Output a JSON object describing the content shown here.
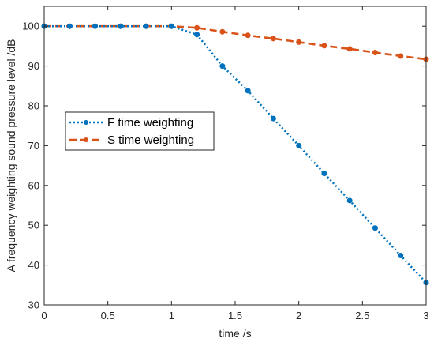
{
  "chart_data": {
    "type": "line",
    "xlabel": "time /s",
    "ylabel": "A frequency weighting sound pressure level /dB",
    "xlim": [
      0,
      3
    ],
    "ylim": [
      30,
      105
    ],
    "xticks": [
      0,
      0.5,
      1,
      1.5,
      2,
      2.5,
      3
    ],
    "xtick_labels": [
      "0",
      "0.5",
      "1",
      "1.5",
      "2",
      "2.5",
      "3"
    ],
    "yticks": [
      30,
      40,
      50,
      60,
      70,
      80,
      90,
      100
    ],
    "ytick_labels": [
      "30",
      "40",
      "50",
      "60",
      "70",
      "80",
      "90",
      "100"
    ],
    "grid": false,
    "legend_position": "middle-left",
    "series": [
      {
        "name": "F time weighting",
        "color": "#0072BD",
        "line_style": "dotted",
        "x": [
          0,
          0.2,
          0.4,
          0.6,
          0.8,
          1.0,
          1.2,
          1.4,
          1.6,
          1.8,
          2.0,
          2.2,
          2.4,
          2.6,
          2.8,
          3.0
        ],
        "values": [
          100,
          100,
          100,
          100,
          100,
          100,
          97.9,
          90.0,
          83.8,
          76.8,
          70.0,
          63.0,
          56.2,
          49.3,
          42.4,
          35.6
        ]
      },
      {
        "name": "S time weighting",
        "color": "#D95319",
        "line_style": "dashed",
        "x": [
          0,
          0.2,
          0.4,
          0.6,
          0.8,
          1.0,
          1.2,
          1.4,
          1.6,
          1.8,
          2.0,
          2.2,
          2.4,
          2.6,
          2.8,
          3.0
        ],
        "values": [
          100,
          100,
          100,
          100,
          100,
          100,
          99.6,
          98.6,
          97.7,
          96.9,
          96.0,
          95.1,
          94.3,
          93.4,
          92.5,
          91.7
        ]
      }
    ]
  }
}
